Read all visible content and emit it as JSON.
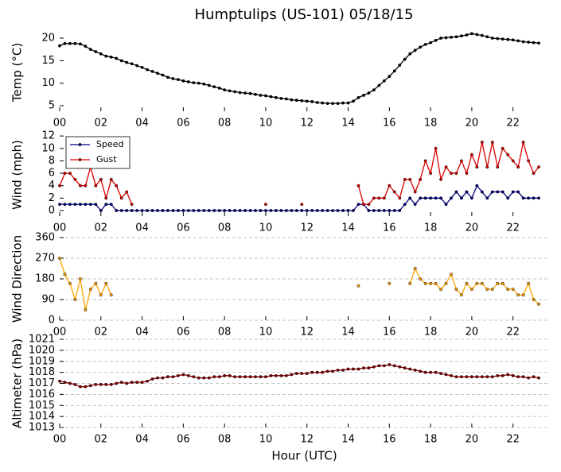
{
  "chart_data": [
    {
      "type": "line",
      "title": "Humptulips (US-101) 05/18/15",
      "ylabel": "Temp (°C)",
      "x": [
        0,
        0.25,
        0.5,
        0.75,
        1,
        1.25,
        1.5,
        1.75,
        2,
        2.25,
        2.5,
        2.75,
        3,
        3.25,
        3.5,
        3.75,
        4,
        4.25,
        4.5,
        4.75,
        5,
        5.25,
        5.5,
        5.75,
        6,
        6.25,
        6.5,
        6.75,
        7,
        7.25,
        7.5,
        7.75,
        8,
        8.25,
        8.5,
        8.75,
        9,
        9.25,
        9.5,
        9.75,
        10,
        10.25,
        10.5,
        10.75,
        11,
        11.25,
        11.5,
        11.75,
        12,
        12.25,
        12.5,
        12.75,
        13,
        13.25,
        13.5,
        13.75,
        14,
        14.25,
        14.5,
        14.75,
        15,
        15.25,
        15.5,
        15.75,
        16,
        16.25,
        16.5,
        16.75,
        17,
        17.25,
        17.5,
        17.75,
        18,
        18.25,
        18.5,
        18.75,
        19,
        19.25,
        19.5,
        19.75,
        20,
        20.25,
        20.5,
        20.75,
        21,
        21.25,
        21.5,
        21.75,
        22,
        22.25,
        22.5,
        22.75,
        23,
        23.25
      ],
      "xlim": [
        0,
        23.75
      ],
      "xticks": [
        {
          "value": 0,
          "label": "00"
        },
        {
          "value": 2,
          "label": "02"
        },
        {
          "value": 4,
          "label": "04"
        },
        {
          "value": 6,
          "label": "06"
        },
        {
          "value": 8,
          "label": "08"
        },
        {
          "value": 10,
          "label": "10"
        },
        {
          "value": 12,
          "label": "12"
        },
        {
          "value": 14,
          "label": "14"
        },
        {
          "value": 16,
          "label": "16"
        },
        {
          "value": 18,
          "label": "18"
        },
        {
          "value": 20,
          "label": "20"
        },
        {
          "value": 22,
          "label": "22"
        }
      ],
      "ylim": [
        3.76,
        21.06
      ],
      "yticks": [
        5,
        10,
        15,
        20
      ],
      "grid": false,
      "series": [
        {
          "color": "#000000",
          "values": [
            18.3,
            18.8,
            18.8,
            18.8,
            18.7,
            18.2,
            17.5,
            17.0,
            16.5,
            16.0,
            15.8,
            15.5,
            15.0,
            14.6,
            14.3,
            13.9,
            13.5,
            13.0,
            12.6,
            12.2,
            11.8,
            11.3,
            11.0,
            10.8,
            10.5,
            10.3,
            10.1,
            10.0,
            9.8,
            9.5,
            9.2,
            8.9,
            8.5,
            8.3,
            8.1,
            7.9,
            7.8,
            7.7,
            7.5,
            7.3,
            7.2,
            7.0,
            6.8,
            6.6,
            6.5,
            6.3,
            6.2,
            6.1,
            6.0,
            5.9,
            5.7,
            5.6,
            5.5,
            5.5,
            5.5,
            5.6,
            5.6,
            6.0,
            6.8,
            7.3,
            7.8,
            8.5,
            9.5,
            10.5,
            11.5,
            12.7,
            14.0,
            15.3,
            16.5,
            17.3,
            18.0,
            18.6,
            19.0,
            19.5,
            20.0,
            20.1,
            20.2,
            20.3,
            20.5,
            20.7,
            21.0,
            20.8,
            20.6,
            20.3,
            20.0,
            19.9,
            19.8,
            19.7,
            19.6,
            19.4,
            19.2,
            19.1,
            19.0,
            18.9
          ]
        }
      ]
    },
    {
      "type": "line",
      "ylabel": "Wind (mph)",
      "legend": "upper left",
      "x": [
        0,
        0.25,
        0.5,
        0.75,
        1,
        1.25,
        1.5,
        1.75,
        2,
        2.25,
        2.5,
        2.75,
        3,
        3.25,
        3.5,
        3.75,
        4,
        4.25,
        4.5,
        4.75,
        5,
        5.25,
        5.5,
        5.75,
        6,
        6.25,
        6.5,
        6.75,
        7,
        7.25,
        7.5,
        7.75,
        8,
        8.25,
        8.5,
        8.75,
        9,
        9.25,
        9.5,
        9.75,
        10,
        10.25,
        10.5,
        10.75,
        11,
        11.25,
        11.5,
        11.75,
        12,
        12.25,
        12.5,
        12.75,
        13,
        13.25,
        13.5,
        13.75,
        14,
        14.25,
        14.5,
        14.75,
        15,
        15.25,
        15.5,
        15.75,
        16,
        16.25,
        16.5,
        16.75,
        17,
        17.25,
        17.5,
        17.75,
        18,
        18.25,
        18.5,
        18.75,
        19,
        19.25,
        19.5,
        19.75,
        20,
        20.25,
        20.5,
        20.75,
        21,
        21.25,
        21.5,
        21.75,
        22,
        22.25,
        22.5,
        22.75,
        23,
        23.25
      ],
      "xlim": [
        0,
        23.75
      ],
      "xticks": [
        {
          "value": 0,
          "label": "00"
        },
        {
          "value": 2,
          "label": "02"
        },
        {
          "value": 4,
          "label": "04"
        },
        {
          "value": 6,
          "label": "06"
        },
        {
          "value": 8,
          "label": "08"
        },
        {
          "value": 10,
          "label": "10"
        },
        {
          "value": 12,
          "label": "12"
        },
        {
          "value": 14,
          "label": "14"
        },
        {
          "value": 16,
          "label": "16"
        },
        {
          "value": 18,
          "label": "18"
        },
        {
          "value": 20,
          "label": "20"
        },
        {
          "value": 22,
          "label": "22"
        }
      ],
      "ylim": [
        -0.9,
        12.4
      ],
      "yticks": [
        0,
        2,
        4,
        6,
        8,
        10,
        12
      ],
      "grid": false,
      "series": [
        {
          "name": "Speed",
          "color": "#000080",
          "values": [
            1,
            1,
            1,
            1,
            1,
            1,
            1,
            1,
            0,
            1,
            1,
            0,
            0,
            0,
            0,
            0,
            0,
            0,
            0,
            0,
            0,
            0,
            0,
            0,
            0,
            0,
            0,
            0,
            0,
            0,
            0,
            0,
            0,
            0,
            0,
            0,
            0,
            0,
            0,
            0,
            0,
            0,
            0,
            0,
            0,
            0,
            0,
            0,
            0,
            0,
            0,
            0,
            0,
            0,
            0,
            0,
            0,
            0,
            1,
            1,
            0,
            0,
            0,
            0,
            0,
            0,
            0,
            1,
            2,
            1,
            2,
            2,
            2,
            2,
            2,
            1,
            2,
            3,
            2,
            3,
            2,
            4,
            3,
            2,
            3,
            3,
            3,
            2,
            3,
            3,
            2,
            2,
            2,
            2
          ]
        },
        {
          "name": "Gust",
          "color": "#dd0000",
          "values": [
            4,
            6,
            6,
            5,
            4,
            4,
            7,
            4,
            5,
            2,
            5,
            4,
            2,
            3,
            1,
            null,
            null,
            null,
            null,
            null,
            null,
            null,
            null,
            null,
            null,
            null,
            null,
            null,
            null,
            null,
            null,
            null,
            null,
            null,
            null,
            null,
            null,
            null,
            null,
            null,
            1,
            null,
            null,
            null,
            null,
            null,
            null,
            1,
            null,
            null,
            null,
            null,
            null,
            null,
            null,
            null,
            null,
            null,
            4,
            1,
            1,
            2,
            2,
            2,
            4,
            3,
            2,
            5,
            5,
            3,
            5,
            8,
            6,
            10,
            5,
            7,
            6,
            6,
            8,
            6,
            9,
            7,
            11,
            7,
            11,
            7,
            10,
            9,
            8,
            7,
            11,
            8,
            6,
            7
          ]
        }
      ]
    },
    {
      "type": "line",
      "ylabel": "Wind Direction",
      "x": [
        0,
        0.25,
        0.5,
        0.75,
        1,
        1.25,
        1.5,
        1.75,
        2,
        2.25,
        2.5,
        2.75,
        3,
        3.25,
        3.5,
        3.75,
        4,
        4.25,
        4.5,
        4.75,
        5,
        5.25,
        5.5,
        5.75,
        6,
        6.25,
        6.5,
        6.75,
        7,
        7.25,
        7.5,
        7.75,
        8,
        8.25,
        8.5,
        8.75,
        9,
        9.25,
        9.5,
        9.75,
        10,
        10.25,
        10.5,
        10.75,
        11,
        11.25,
        11.5,
        11.75,
        12,
        12.25,
        12.5,
        12.75,
        13,
        13.25,
        13.5,
        13.75,
        14,
        14.25,
        14.5,
        14.75,
        15,
        15.25,
        15.5,
        15.75,
        16,
        16.25,
        16.5,
        16.75,
        17,
        17.25,
        17.5,
        17.75,
        18,
        18.25,
        18.5,
        18.75,
        19,
        19.25,
        19.5,
        19.75,
        20,
        20.25,
        20.5,
        20.75,
        21,
        21.25,
        21.5,
        21.75,
        22,
        22.25,
        22.5,
        22.75,
        23,
        23.25
      ],
      "xlim": [
        0,
        23.75
      ],
      "xticks": [
        {
          "value": 0,
          "label": "00"
        },
        {
          "value": 2,
          "label": "02"
        },
        {
          "value": 4,
          "label": "04"
        },
        {
          "value": 6,
          "label": "06"
        },
        {
          "value": 8,
          "label": "08"
        },
        {
          "value": 10,
          "label": "10"
        },
        {
          "value": 12,
          "label": "12"
        },
        {
          "value": 14,
          "label": "14"
        },
        {
          "value": 16,
          "label": "16"
        },
        {
          "value": 18,
          "label": "18"
        },
        {
          "value": 20,
          "label": "20"
        },
        {
          "value": 22,
          "label": "22"
        }
      ],
      "ylim": [
        0,
        360
      ],
      "yticks": [
        0,
        90,
        180,
        270,
        360
      ],
      "grid": true,
      "series": [
        {
          "color": "#ffa500",
          "values": [
            270,
            200,
            160,
            90,
            180,
            45,
            135,
            160,
            110,
            160,
            110,
            null,
            null,
            null,
            null,
            null,
            null,
            null,
            null,
            null,
            null,
            null,
            null,
            null,
            null,
            null,
            null,
            null,
            null,
            null,
            null,
            null,
            null,
            null,
            null,
            null,
            null,
            null,
            null,
            null,
            null,
            null,
            null,
            null,
            null,
            null,
            null,
            null,
            null,
            null,
            null,
            null,
            null,
            null,
            null,
            null,
            null,
            null,
            150,
            null,
            null,
            null,
            null,
            null,
            160,
            null,
            null,
            null,
            160,
            225,
            180,
            160,
            160,
            160,
            135,
            160,
            200,
            135,
            110,
            160,
            135,
            160,
            160,
            135,
            135,
            160,
            160,
            135,
            135,
            110,
            110,
            160,
            90,
            70
          ]
        }
      ]
    },
    {
      "type": "line",
      "ylabel": "Altimeter (hPa)",
      "xlabel": "Hour (UTC)",
      "x": [
        0,
        0.25,
        0.5,
        0.75,
        1,
        1.25,
        1.5,
        1.75,
        2,
        2.25,
        2.5,
        2.75,
        3,
        3.25,
        3.5,
        3.75,
        4,
        4.25,
        4.5,
        4.75,
        5,
        5.25,
        5.5,
        5.75,
        6,
        6.25,
        6.5,
        6.75,
        7,
        7.25,
        7.5,
        7.75,
        8,
        8.25,
        8.5,
        8.75,
        9,
        9.25,
        9.5,
        9.75,
        10,
        10.25,
        10.5,
        10.75,
        11,
        11.25,
        11.5,
        11.75,
        12,
        12.25,
        12.5,
        12.75,
        13,
        13.25,
        13.5,
        13.75,
        14,
        14.25,
        14.5,
        14.75,
        15,
        15.25,
        15.5,
        15.75,
        16,
        16.25,
        16.5,
        16.75,
        17,
        17.25,
        17.5,
        17.75,
        18,
        18.25,
        18.5,
        18.75,
        19,
        19.25,
        19.5,
        19.75,
        20,
        20.25,
        20.5,
        20.75,
        21,
        21.25,
        21.5,
        21.75,
        22,
        22.25,
        22.5,
        22.75,
        23,
        23.25
      ],
      "xlim": [
        0,
        23.75
      ],
      "xticks": [
        {
          "value": 0,
          "label": "00"
        },
        {
          "value": 2,
          "label": "02"
        },
        {
          "value": 4,
          "label": "04"
        },
        {
          "value": 6,
          "label": "06"
        },
        {
          "value": 8,
          "label": "08"
        },
        {
          "value": 10,
          "label": "10"
        },
        {
          "value": 12,
          "label": "12"
        },
        {
          "value": 14,
          "label": "14"
        },
        {
          "value": 16,
          "label": "16"
        },
        {
          "value": 18,
          "label": "18"
        },
        {
          "value": 20,
          "label": "20"
        },
        {
          "value": 22,
          "label": "22"
        }
      ],
      "ylim": [
        1013,
        1021
      ],
      "yticks": [
        1013,
        1014,
        1015,
        1016,
        1017,
        1018,
        1019,
        1020,
        1021
      ],
      "grid": true,
      "series": [
        {
          "color": "#8b0000",
          "values": [
            1017.2,
            1017.1,
            1017.0,
            1016.9,
            1016.7,
            1016.7,
            1016.8,
            1016.9,
            1016.9,
            1016.9,
            1016.9,
            1017.0,
            1017.1,
            1017.0,
            1017.1,
            1017.1,
            1017.1,
            1017.2,
            1017.4,
            1017.5,
            1017.5,
            1017.6,
            1017.6,
            1017.7,
            1017.8,
            1017.7,
            1017.6,
            1017.5,
            1017.5,
            1017.5,
            1017.6,
            1017.6,
            1017.7,
            1017.7,
            1017.6,
            1017.6,
            1017.6,
            1017.6,
            1017.6,
            1017.6,
            1017.6,
            1017.7,
            1017.7,
            1017.7,
            1017.7,
            1017.8,
            1017.9,
            1017.9,
            1017.9,
            1018.0,
            1018.0,
            1018.0,
            1018.1,
            1018.1,
            1018.2,
            1018.2,
            1018.3,
            1018.3,
            1018.3,
            1018.4,
            1018.4,
            1018.5,
            1018.6,
            1018.6,
            1018.7,
            1018.6,
            1018.5,
            1018.4,
            1018.3,
            1018.2,
            1018.1,
            1018.0,
            1018.0,
            1018.0,
            1017.9,
            1017.8,
            1017.7,
            1017.6,
            1017.6,
            1017.6,
            1017.6,
            1017.6,
            1017.6,
            1017.6,
            1017.6,
            1017.7,
            1017.7,
            1017.8,
            1017.7,
            1017.6,
            1017.6,
            1017.5,
            1017.6,
            1017.5
          ]
        }
      ]
    }
  ]
}
